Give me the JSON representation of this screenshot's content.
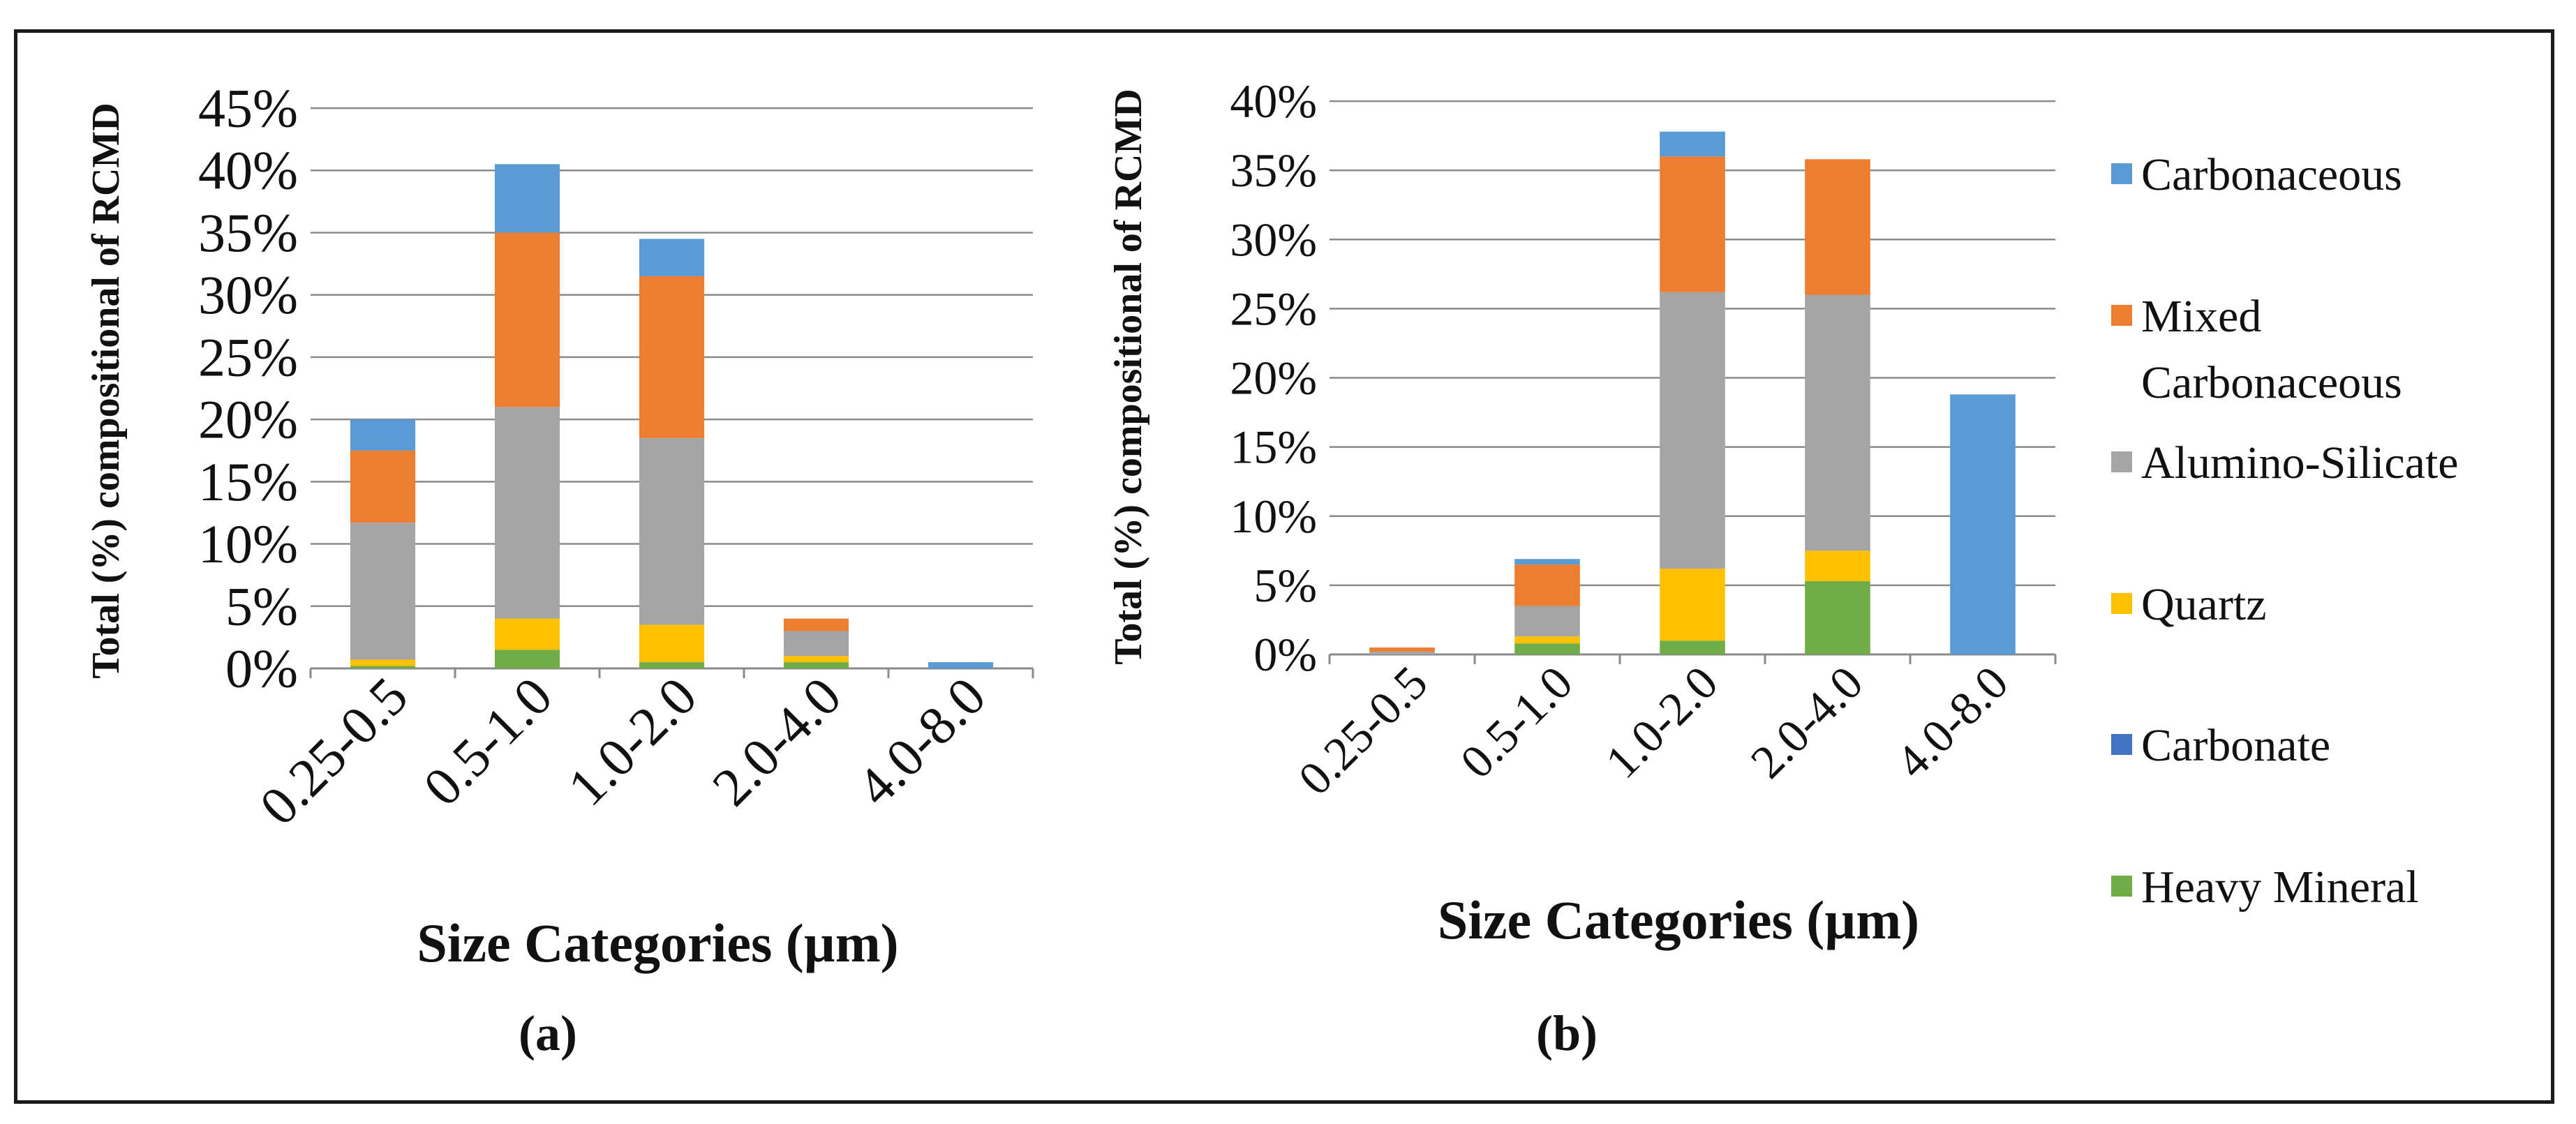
{
  "series_colors": {
    "Heavy Mineral": "#70ad47",
    "Carbonate": "#4472c4",
    "Quartz": "#ffc000",
    "Alumino-Silicate": "#a5a5a5",
    "Mixed Carbonaceous": "#ed7d31",
    "Carbonaceous": "#5b9bd5"
  },
  "legend": {
    "items": [
      {
        "name": "Carbonaceous",
        "label_lines": [
          "Carbonaceous"
        ]
      },
      {
        "name": "Mixed Carbonaceous",
        "label_lines": [
          "Mixed",
          "Carbonaceous"
        ]
      },
      {
        "name": "Alumino-Silicate",
        "label_lines": [
          "Alumino-Silicate"
        ]
      },
      {
        "name": "Quartz",
        "label_lines": [
          "Quartz"
        ]
      },
      {
        "name": "Carbonate",
        "label_lines": [
          "Carbonate"
        ]
      },
      {
        "name": "Heavy Mineral",
        "label_lines": [
          "Heavy Mineral"
        ]
      }
    ]
  },
  "chart_data": [
    {
      "type": "bar",
      "stacked": true,
      "panel_label": "(a)",
      "title": "",
      "xlabel": "Size Categories (µm)",
      "ylabel": "Total (%) compositional of RCMD",
      "categories": [
        "0.25-0.5",
        "0.5-1.0",
        "1.0-2.0",
        "2.0-4.0",
        "4.0-8.0"
      ],
      "ylim": [
        0,
        45
      ],
      "yticks": [
        0,
        5,
        10,
        15,
        20,
        25,
        30,
        35,
        40,
        45
      ],
      "ytick_labels": [
        "0%",
        "5%",
        "10%",
        "15%",
        "20%",
        "25%",
        "30%",
        "35%",
        "40%",
        "45%"
      ],
      "grid": true,
      "series": [
        {
          "name": "Heavy Mineral",
          "values": [
            0.2,
            1.5,
            0.5,
            0.5,
            0
          ]
        },
        {
          "name": "Carbonate",
          "values": [
            0,
            0,
            0,
            0,
            0
          ]
        },
        {
          "name": "Quartz",
          "values": [
            0.5,
            2.5,
            3.0,
            0.5,
            0
          ]
        },
        {
          "name": "Alumino-Silicate",
          "values": [
            11.0,
            17.0,
            15.0,
            2.0,
            0
          ]
        },
        {
          "name": "Mixed Carbonaceous",
          "values": [
            5.8,
            14.0,
            13.0,
            1.0,
            0
          ]
        },
        {
          "name": "Carbonaceous",
          "values": [
            2.5,
            5.5,
            3.0,
            0,
            0.5
          ]
        }
      ]
    },
    {
      "type": "bar",
      "stacked": true,
      "panel_label": "(b)",
      "title": "",
      "xlabel": "Size Categories (µm)",
      "ylabel": "Total (%) compositional of RCMD",
      "categories": [
        "0.25-0.5",
        "0.5-1.0",
        "1.0-2.0",
        "2.0-4.0",
        "4.0-8.0"
      ],
      "ylim": [
        0,
        40
      ],
      "yticks": [
        0,
        5,
        10,
        15,
        20,
        25,
        30,
        35,
        40
      ],
      "ytick_labels": [
        "0%",
        "5%",
        "10%",
        "15%",
        "20%",
        "25%",
        "30%",
        "35%",
        "40%"
      ],
      "grid": true,
      "series": [
        {
          "name": "Heavy Mineral",
          "values": [
            0,
            0.8,
            1.0,
            5.3,
            0
          ]
        },
        {
          "name": "Carbonate",
          "values": [
            0,
            0,
            0,
            0,
            0
          ]
        },
        {
          "name": "Quartz",
          "values": [
            0,
            0.5,
            5.2,
            2.2,
            0
          ]
        },
        {
          "name": "Alumino-Silicate",
          "values": [
            0.2,
            2.2,
            20.0,
            18.5,
            0
          ]
        },
        {
          "name": "Mixed Carbonaceous",
          "values": [
            0.3,
            3.0,
            9.8,
            9.8,
            0
          ]
        },
        {
          "name": "Carbonaceous",
          "values": [
            0,
            0.4,
            1.8,
            0,
            18.8
          ]
        }
      ]
    }
  ]
}
